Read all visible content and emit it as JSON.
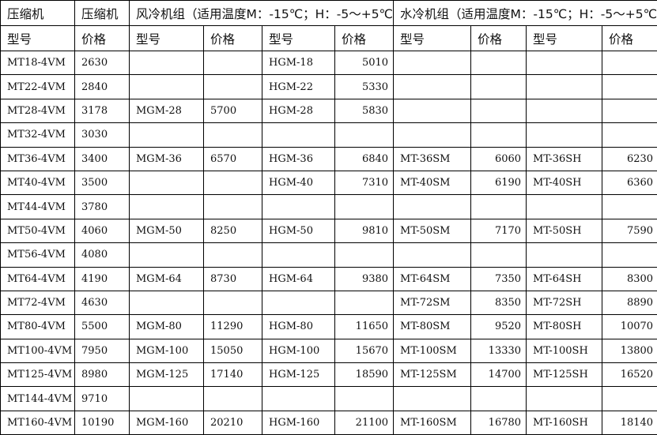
{
  "header": {
    "col1": "压缩机",
    "col2": "压缩机",
    "air": "风冷机组（适用温度M：-15℃；H：-5～+5℃",
    "water": "水冷机组（适用温度M：-15℃；H：-5～+5℃"
  },
  "subheader": [
    "型号",
    "价格",
    "型号",
    "价格",
    "型号",
    "价格",
    "型号",
    "价格",
    "型号",
    "价格"
  ],
  "rows": [
    [
      "MT18-4VM",
      "2630",
      "",
      "",
      "HGM-18",
      "5010",
      "",
      "",
      "",
      ""
    ],
    [
      "MT22-4VM",
      "2840",
      "",
      "",
      "HGM-22",
      "5330",
      "",
      "",
      "",
      ""
    ],
    [
      "MT28-4VM",
      "3178",
      "MGM-28",
      "5700",
      "HGM-28",
      "5830",
      "",
      "",
      "",
      ""
    ],
    [
      "MT32-4VM",
      "3030",
      "",
      "",
      "",
      "",
      "",
      "",
      "",
      ""
    ],
    [
      "MT36-4VM",
      "3400",
      "MGM-36",
      "6570",
      "HGM-36",
      "6840",
      "MT-36SM",
      "6060",
      "MT-36SH",
      "6230"
    ],
    [
      "MT40-4VM",
      "3500",
      "",
      "",
      "HGM-40",
      "7310",
      "MT-40SM",
      "6190",
      "MT-40SH",
      "6360"
    ],
    [
      "MT44-4VM",
      "3780",
      "",
      "",
      "",
      "",
      "",
      "",
      "",
      ""
    ],
    [
      "MT50-4VM",
      "4060",
      "MGM-50",
      "8250",
      "HGM-50",
      "9810",
      "MT-50SM",
      "7170",
      "MT-50SH",
      "7590"
    ],
    [
      "MT56-4VM",
      "4080",
      "",
      "",
      "",
      "",
      "",
      "",
      "",
      ""
    ],
    [
      "MT64-4VM",
      "4190",
      "MGM-64",
      "8730",
      "HGM-64",
      "9380",
      "MT-64SM",
      "7350",
      "MT-64SH",
      "8300"
    ],
    [
      "MT72-4VM",
      "4630",
      "",
      "",
      "",
      "",
      "MT-72SM",
      "8350",
      "MT-72SH",
      "8890"
    ],
    [
      "MT80-4VM",
      "5500",
      "MGM-80",
      "11290",
      "HGM-80",
      "11650",
      "MT-80SM",
      "9520",
      "MT-80SH",
      "10070"
    ],
    [
      "MT100-4VM",
      "7950",
      "MGM-100",
      "15050",
      "HGM-100",
      "15670",
      "MT-100SM",
      "13330",
      "MT-100SH",
      "13800"
    ],
    [
      "MT125-4VM",
      "8980",
      "MGM-125",
      "17140",
      "HGM-125",
      "18590",
      "MT-125SM",
      "14700",
      "MT-125SH",
      "16520"
    ],
    [
      "MT144-4VM",
      "9710",
      "",
      "",
      "",
      "",
      "",
      "",
      "",
      ""
    ],
    [
      "MT160-4VM",
      "10190",
      "MGM-160",
      "20210",
      "HGM-160",
      "21100",
      "MT-160SM",
      "16780",
      "MT-160SH",
      "18140"
    ]
  ]
}
